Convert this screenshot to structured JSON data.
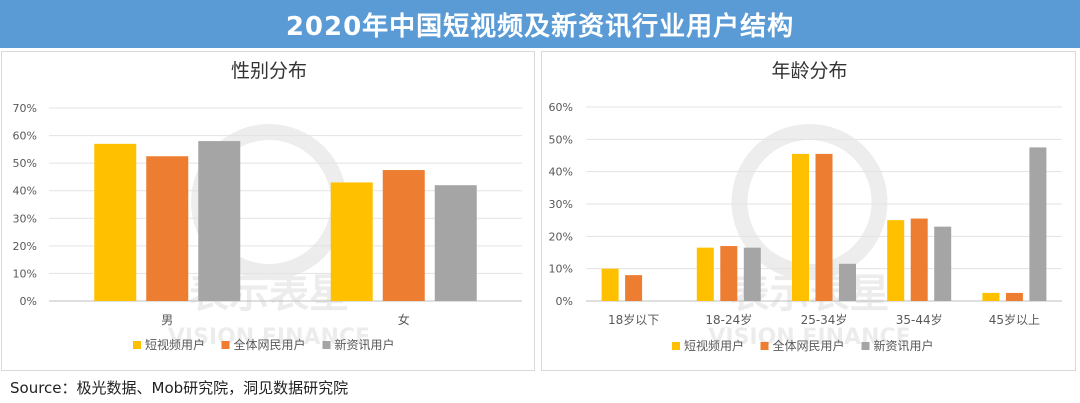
{
  "header": {
    "title": "2020年中国短视频及新资讯行业用户结构"
  },
  "source": "Source：极光数据、Mob研究院，洞见数据研究院",
  "watermark": {
    "line1": "表示表星",
    "line2": "VISION FINANCE"
  },
  "colors": {
    "series": [
      "#ffc000",
      "#ed7d31",
      "#a5a5a5"
    ],
    "title_bar": "#5b9bd5"
  },
  "chart_data": [
    {
      "type": "bar",
      "title": "性别分布",
      "categories": [
        "男",
        "女"
      ],
      "series": [
        {
          "name": "短视频用户",
          "values": [
            57,
            43
          ]
        },
        {
          "name": "全体网民用户",
          "values": [
            52.5,
            47.5
          ]
        },
        {
          "name": "新资讯用户",
          "values": [
            58,
            42
          ]
        }
      ],
      "ylim": [
        0,
        70
      ],
      "yticks": [
        "0%",
        "10%",
        "20%",
        "30%",
        "40%",
        "50%",
        "60%",
        "70%"
      ],
      "grid": true,
      "legend": "bottom"
    },
    {
      "type": "bar",
      "title": "年龄分布",
      "categories": [
        "18岁以下",
        "18-24岁",
        "25-34岁",
        "35-44岁",
        "45岁以上"
      ],
      "series": [
        {
          "name": "短视频用户",
          "values": [
            10,
            16.5,
            45.5,
            25,
            2.5
          ]
        },
        {
          "name": "全体网民用户",
          "values": [
            8,
            17,
            45.5,
            25.5,
            2.5
          ]
        },
        {
          "name": "新资讯用户",
          "values": [
            0,
            16.5,
            11.5,
            23,
            47.5
          ]
        }
      ],
      "ylim": [
        0,
        60
      ],
      "yticks": [
        "0%",
        "10%",
        "20%",
        "30%",
        "40%",
        "50%",
        "60%"
      ],
      "grid": true,
      "legend": "bottom"
    }
  ]
}
